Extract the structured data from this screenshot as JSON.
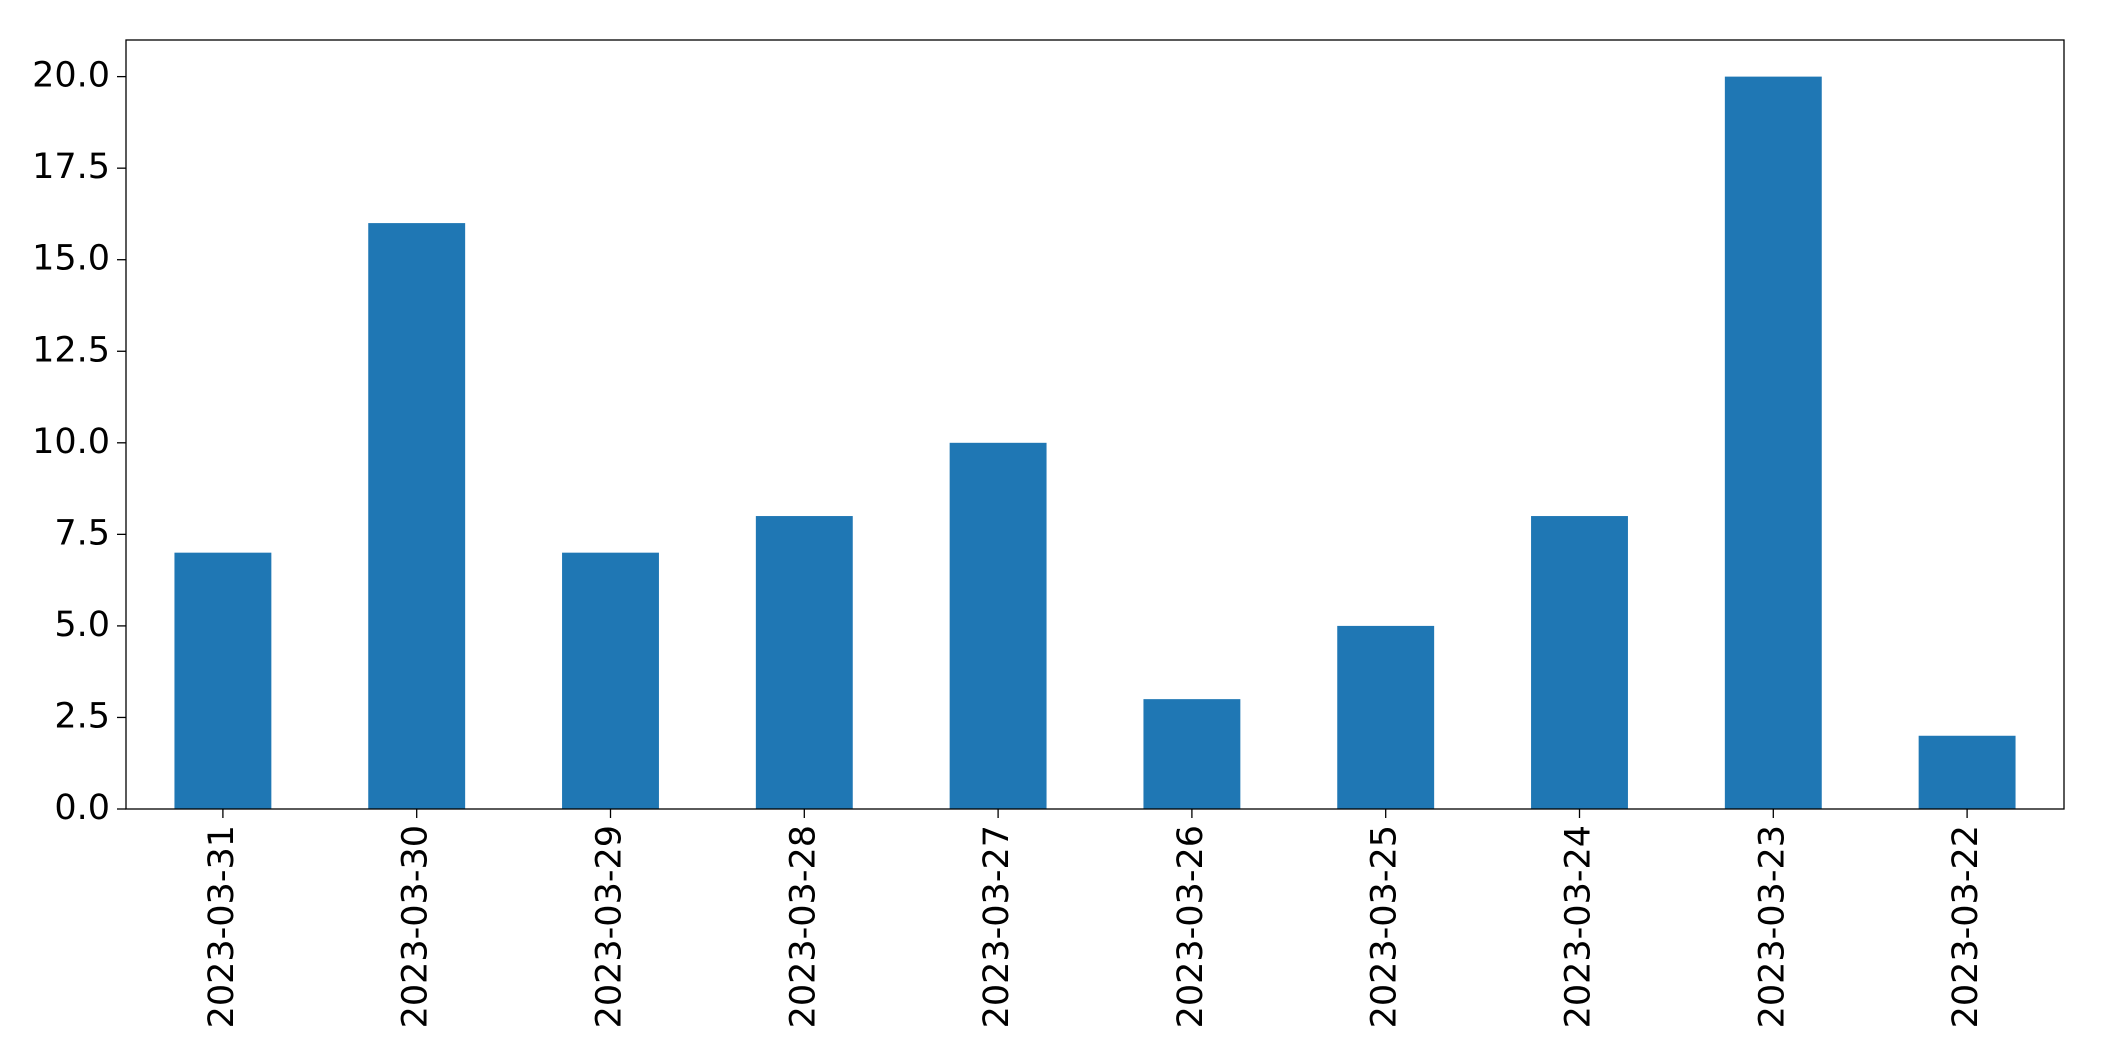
{
  "chart_data": {
    "type": "bar",
    "categories": [
      "2023-03-31",
      "2023-03-30",
      "2023-03-29",
      "2023-03-28",
      "2023-03-27",
      "2023-03-26",
      "2023-03-25",
      "2023-03-24",
      "2023-03-23",
      "2023-03-22"
    ],
    "values": [
      7,
      16,
      7,
      8,
      10,
      3,
      5,
      8,
      20,
      2
    ],
    "color": "#1f77b4",
    "ylim": [
      0,
      21
    ],
    "yticks": [
      {
        "value": 0,
        "label": "0.0"
      },
      {
        "value": 2.5,
        "label": "2.5"
      },
      {
        "value": 5,
        "label": "5.0"
      },
      {
        "value": 7.5,
        "label": "7.5"
      },
      {
        "value": 10,
        "label": "10.0"
      },
      {
        "value": 12.5,
        "label": "12.5"
      },
      {
        "value": 15,
        "label": "15.0"
      },
      {
        "value": 17.5,
        "label": "17.5"
      },
      {
        "value": 20,
        "label": "20.0"
      }
    ],
    "grid": false
  }
}
